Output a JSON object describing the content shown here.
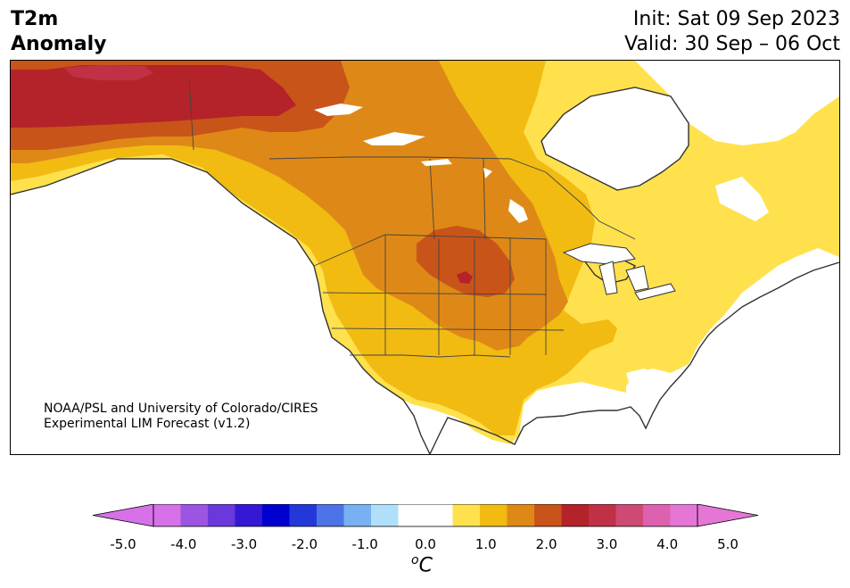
{
  "title": {
    "line1": "T2m",
    "line2": "Anomaly"
  },
  "init_line": "Init: Sat 09 Sep 2023",
  "valid_line": "Valid: 30 Sep – 06 Oct",
  "credit": {
    "line1": "NOAA/PSL and University of Colorado/CIRES",
    "line2": "Experimental LIM Forecast (v1.2)"
  },
  "colorbar": {
    "units_sup": "o",
    "units": "C",
    "tick_labels": [
      "-5.0",
      "-4.0",
      "-3.0",
      "-2.0",
      "-1.0",
      "0.0",
      "1.0",
      "2.0",
      "3.0",
      "4.0",
      "5.0"
    ],
    "colors": [
      "#d671e8",
      "#9b55e0",
      "#6a38db",
      "#3418d3",
      "#0000d0",
      "#2438da",
      "#4d74e6",
      "#77b1f1",
      "#b0dff9",
      "#ffffff",
      "#ffffff",
      "#ffe14e",
      "#f1bb12",
      "#de8917",
      "#c95419",
      "#b32329",
      "#c03146",
      "#ce4a74",
      "#dc62b0",
      "#e676d6"
    ],
    "extend_low": "#d671e8",
    "extend_high": "#e676d6"
  },
  "map": {
    "region": "North America",
    "projection": "Lambert Conformal",
    "colors": {
      "c05": "#ffe14e",
      "c10": "#f1bb12",
      "c15": "#de8917",
      "c20": "#c95419",
      "c25": "#b32329",
      "c30": "#c03146",
      "land_line": "#333333",
      "water": "#ffffff"
    }
  }
}
